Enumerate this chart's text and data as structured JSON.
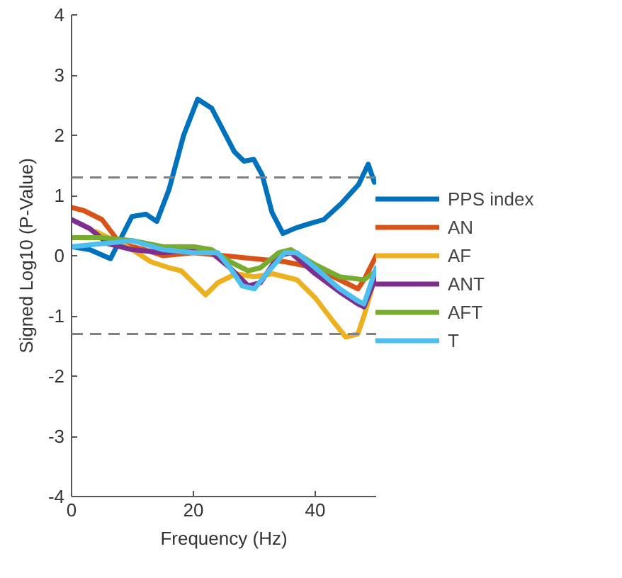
{
  "chart_data": {
    "type": "line",
    "xlabel": "Frequency (Hz)",
    "ylabel": "Signed Log10 (P-Value)",
    "xlim": [
      0,
      50
    ],
    "ylim": [
      -4,
      4
    ],
    "xticks": [
      0,
      20,
      40
    ],
    "yticks": [
      -4,
      -3,
      -2,
      -1,
      0,
      1,
      2,
      3,
      4
    ],
    "grid": false,
    "legend": "right",
    "line_style": "solid",
    "ref_lines": [
      {
        "axis": "y",
        "value": 1.3,
        "color": "#808080",
        "line_style": "dashed"
      },
      {
        "axis": "y",
        "value": -1.3,
        "color": "#808080",
        "line_style": "dashed"
      }
    ],
    "series": [
      {
        "name": "PPS index",
        "color": "#0072bd",
        "x": [
          0,
          3,
          6.4,
          9.9,
          12.2,
          14,
          16,
          18.4,
          20.7,
          23,
          24.8,
          26.7,
          28.3,
          29.9,
          31.3,
          32.9,
          34.7,
          36.8,
          39,
          41.4,
          44.4,
          47.1,
          48.7,
          49.7
        ],
        "values": [
          0.15,
          0.1,
          -0.05,
          0.65,
          0.69,
          0.57,
          1.1,
          2.0,
          2.6,
          2.45,
          2.1,
          1.73,
          1.57,
          1.6,
          1.34,
          0.72,
          0.37,
          0.46,
          0.53,
          0.6,
          0.88,
          1.18,
          1.52,
          1.22
        ]
      },
      {
        "name": "AN",
        "color": "#d95319",
        "x": [
          0,
          2,
          5,
          8,
          12,
          15,
          20,
          25,
          30,
          35,
          40,
          44,
          47,
          48,
          50
        ],
        "values": [
          0.8,
          0.75,
          0.6,
          0.2,
          0.1,
          0.0,
          0.05,
          0.0,
          -0.05,
          -0.1,
          -0.2,
          -0.4,
          -0.55,
          -0.4,
          0.0
        ]
      },
      {
        "name": "AF",
        "color": "#edb120",
        "x": [
          4,
          8,
          10,
          13,
          16,
          18,
          20,
          22,
          24,
          27,
          30,
          33,
          37,
          40,
          43,
          45,
          47,
          48,
          50
        ],
        "values": [
          0.4,
          0.2,
          0.1,
          -0.1,
          -0.2,
          -0.25,
          -0.45,
          -0.65,
          -0.45,
          -0.3,
          -0.35,
          -0.3,
          -0.4,
          -0.7,
          -1.1,
          -1.35,
          -1.3,
          -1.0,
          -0.3
        ]
      },
      {
        "name": "ANT",
        "color": "#7e2f8e",
        "x": [
          0,
          3,
          6,
          10,
          15,
          20,
          23,
          26,
          29,
          31,
          34,
          36,
          40,
          44,
          47,
          48,
          50
        ],
        "values": [
          0.6,
          0.45,
          0.2,
          0.1,
          0.05,
          0.1,
          0.05,
          -0.2,
          -0.5,
          -0.45,
          0.0,
          0.05,
          -0.3,
          -0.6,
          -0.8,
          -0.85,
          -0.35
        ]
      },
      {
        "name": "AFT",
        "color": "#77ac30",
        "x": [
          0,
          5,
          10,
          15,
          20,
          23,
          26,
          29,
          31,
          34,
          36,
          40,
          44,
          48,
          50
        ],
        "values": [
          0.3,
          0.3,
          0.25,
          0.15,
          0.15,
          0.1,
          -0.1,
          -0.25,
          -0.2,
          0.05,
          0.1,
          -0.15,
          -0.35,
          -0.4,
          -0.25
        ]
      },
      {
        "name": "T",
        "color": "#4dbeee",
        "x": [
          0,
          5,
          10,
          15,
          20,
          24,
          26,
          28,
          30,
          32,
          35,
          37,
          40,
          44,
          47,
          48,
          50
        ],
        "values": [
          0.15,
          0.2,
          0.25,
          0.1,
          0.05,
          0.05,
          -0.2,
          -0.5,
          -0.55,
          -0.3,
          0.05,
          0.05,
          -0.2,
          -0.55,
          -0.75,
          -0.8,
          -0.2
        ]
      }
    ]
  }
}
